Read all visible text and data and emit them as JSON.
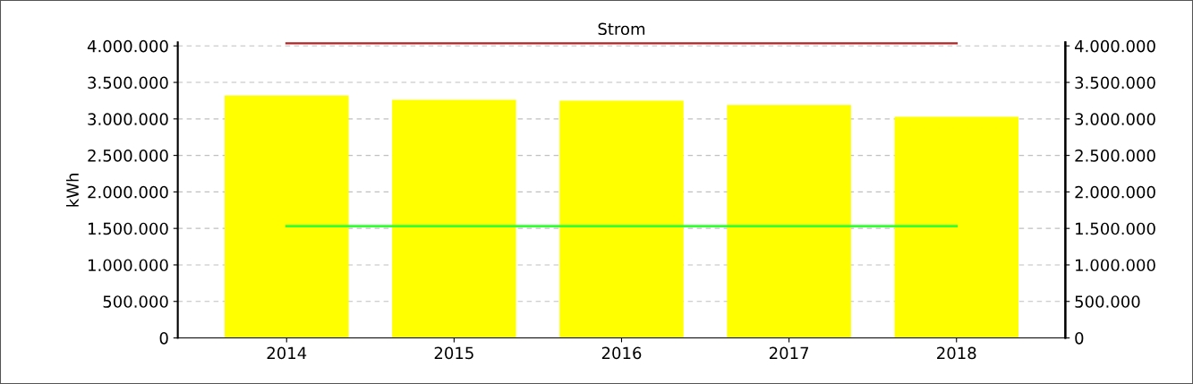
{
  "chart_data": {
    "type": "bar",
    "title": "Strom",
    "ylabel": "kWh",
    "categories": [
      "2014",
      "2015",
      "2016",
      "2017",
      "2018"
    ],
    "series": [
      {
        "color": "#ffff00",
        "values": [
          3320000,
          3260000,
          3250000,
          3190000,
          3030000
        ]
      },
      {
        "type": "line",
        "color": "#b22222",
        "values": [
          4040000,
          4040000,
          4040000,
          4040000,
          4040000
        ]
      },
      {
        "type": "line",
        "color": "#33ff33",
        "values": [
          1530000,
          1530000,
          1530000,
          1530000,
          1530000
        ]
      }
    ],
    "ylim": [
      0,
      4050000
    ],
    "yticks": [
      0,
      {
        "value": 500000,
        "label": "500.000"
      },
      {
        "value": 1000000,
        "label": "1.000.000"
      },
      {
        "value": 1500000,
        "label": "1.500.000"
      },
      {
        "value": 2000000,
        "label": "2.000.000"
      },
      {
        "value": 2500000,
        "label": "2.500.000"
      },
      {
        "value": 3000000,
        "label": "3.000.000"
      },
      {
        "value": 3500000,
        "label": "3.500.000"
      },
      {
        "value": 4000000,
        "label": "4.000.000"
      }
    ],
    "y2lim": [
      0,
      4050000
    ],
    "y2ticks": [
      0,
      {
        "value": 500000,
        "label": "500.000"
      },
      {
        "value": 1000000,
        "label": "1.000.000"
      },
      {
        "value": 1500000,
        "label": "1.500.000"
      },
      {
        "value": 2000000,
        "label": "2.000.000"
      },
      {
        "value": 2500000,
        "label": "2.500.000"
      },
      {
        "value": 3000000,
        "label": "3.000.000"
      },
      {
        "value": 3500000,
        "label": "3.500.000"
      },
      {
        "value": 4000000,
        "label": "4.000.000"
      }
    ],
    "grid": "y",
    "legend": false
  }
}
